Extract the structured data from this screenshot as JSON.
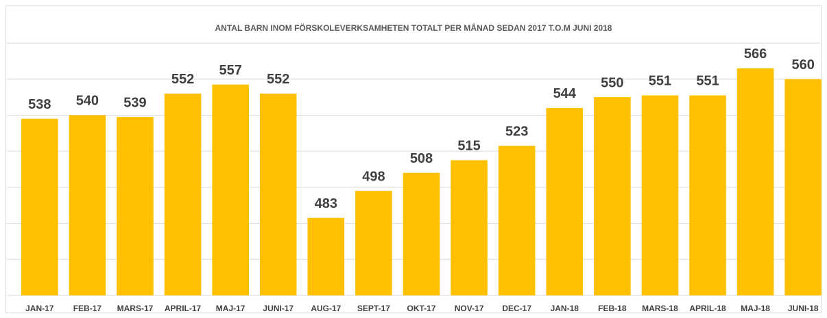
{
  "chart_data": {
    "type": "bar",
    "title": "ANTAL BARN INOM FÖRSKOLEVERKSAMHETEN TOTALT PER MÅNAD SEDAN 2017 T.O.M JUNI 2018",
    "categories": [
      "JAN-17",
      "FEB-17",
      "MARS-17",
      "APRIL-17",
      "MAJ-17",
      "JUNI-17",
      "AUG-17",
      "SEPT-17",
      "OKT-17",
      "NOV-17",
      "DEC-17",
      "JAN-18",
      "FEB-18",
      "MARS-18",
      "APRIL-18",
      "MAJ-18",
      "JUNI-18"
    ],
    "values": [
      538,
      540,
      539,
      552,
      557,
      552,
      483,
      498,
      508,
      515,
      523,
      544,
      550,
      551,
      551,
      566,
      560
    ],
    "color": "#ffc000",
    "ylim": [
      440,
      580
    ],
    "yticks": [
      440,
      460,
      480,
      500,
      520,
      540,
      560,
      580
    ],
    "grid": true
  }
}
